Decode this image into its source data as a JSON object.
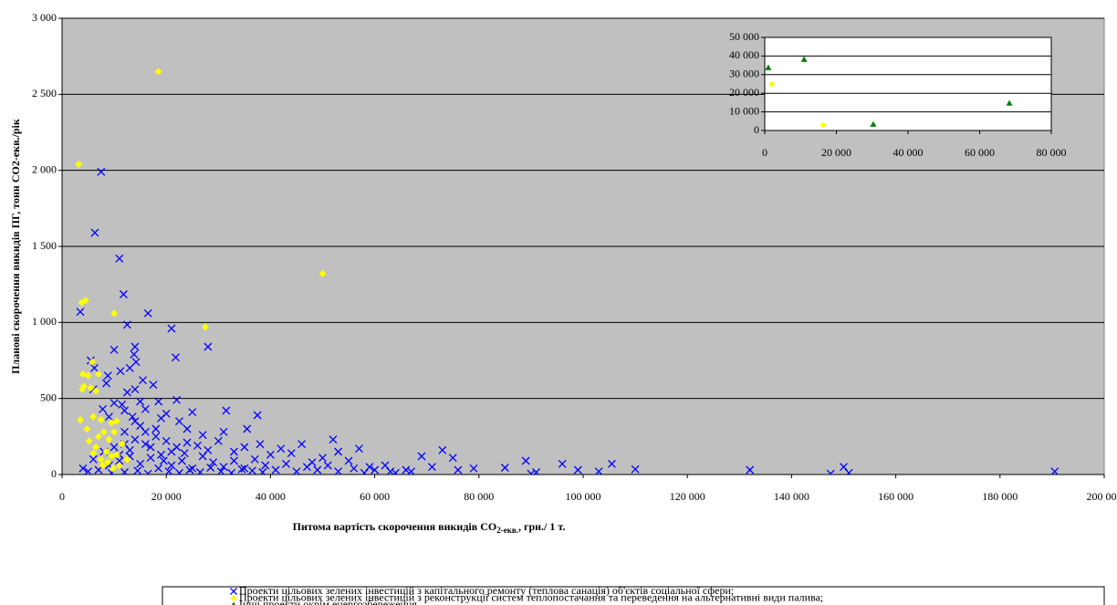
{
  "chart_data": [
    {
      "type": "scatter",
      "y_label": "Планові скорочення викидів ПГ, тонн CO2-екв./рік",
      "x_label": [
        "Питома вартість скорочення викидів CO",
        "2-екв.",
        ", грн./ 1 т."
      ],
      "xlim": [
        0,
        200000
      ],
      "xticks": [
        0,
        {
          "value": 20000,
          "label": "20 000"
        },
        {
          "value": 40000,
          "label": "40 000"
        },
        {
          "value": 60000,
          "label": "60 000"
        },
        {
          "value": 80000,
          "label": "80 000"
        },
        {
          "value": 100000,
          "label": "100 000"
        },
        {
          "value": 120000,
          "label": "120 000"
        },
        {
          "value": 140000,
          "label": "140 000"
        },
        {
          "value": 160000,
          "label": "160 000"
        },
        {
          "value": 180000,
          "label": "180 000"
        },
        {
          "value": 200000,
          "label": "200 000"
        }
      ],
      "ylim": [
        0,
        3000
      ],
      "yticks": [
        0,
        500,
        {
          "value": 1000,
          "label": "1 000"
        },
        {
          "value": 1500,
          "label": "1 500"
        },
        {
          "value": 2000,
          "label": "2 000"
        },
        {
          "value": 2500,
          "label": "2 500"
        },
        {
          "value": 3000,
          "label": "3 000"
        }
      ],
      "grid": true,
      "legend": "bottom",
      "series": [
        {
          "name": "Проекти цільових зелених інвестицій з капітального ремонту (теплова санація) об'єктів соціальної сфери;",
          "color": "#0000ff",
          "marker": "x",
          "x": [
            7500,
            6300,
            11000,
            11800,
            3500,
            16500,
            21000,
            12500,
            21800,
            10000,
            28000,
            14000,
            13800,
            14200,
            11200,
            13000,
            5500,
            6200,
            8800,
            15500,
            17500,
            8500,
            6000,
            14000,
            12500,
            15000,
            18500,
            22000,
            10000,
            11500,
            7800,
            16000,
            20000,
            25000,
            31500,
            37500,
            9000,
            13500,
            19000,
            22500,
            35500,
            31000,
            24000,
            27000,
            15000,
            18000,
            12000,
            52000,
            46000,
            57000,
            53000,
            73000,
            69000,
            75000,
            89000,
            96000,
            105500,
            150000,
            132000,
            190500,
            147500,
            151000,
            90000,
            91000,
            99000,
            103000,
            110000,
            85000,
            79000,
            66000,
            63000,
            62000,
            59000,
            55000,
            50000,
            48000,
            44000,
            42000,
            40000,
            38000,
            35000,
            33000,
            30000,
            28000,
            26000,
            24000,
            22000,
            20000,
            18000,
            16000,
            14000,
            12000,
            10000,
            8000,
            6000,
            4000,
            9000,
            11000,
            13000,
            15000,
            17000,
            19000,
            21000,
            23000,
            25000,
            27000,
            29000,
            31000,
            33000,
            35000,
            37000,
            39000,
            41000,
            43000,
            45000,
            47000,
            49000,
            51000,
            53000,
            56000,
            58000,
            60000,
            64000,
            67000,
            71000,
            76000,
            5000,
            7000,
            9500,
            12000,
            14500,
            16500,
            18500,
            20500,
            22500,
            24500,
            26500,
            28500,
            30500,
            32500,
            34500,
            36500,
            38500,
            13000,
            17000,
            21000,
            19500,
            23500,
            11000,
            16000,
            14000,
            12000
          ],
          "values": [
            1990,
            1590,
            1420,
            1185,
            1070,
            1060,
            960,
            985,
            770,
            820,
            840,
            840,
            790,
            740,
            680,
            700,
            750,
            700,
            650,
            620,
            590,
            600,
            560,
            560,
            540,
            480,
            480,
            490,
            470,
            460,
            430,
            430,
            400,
            410,
            420,
            390,
            380,
            380,
            370,
            350,
            300,
            280,
            300,
            260,
            320,
            300,
            280,
            230,
            200,
            170,
            150,
            160,
            120,
            110,
            90,
            70,
            70,
            50,
            30,
            20,
            5,
            10,
            5,
            15,
            30,
            20,
            35,
            45,
            40,
            30,
            20,
            60,
            50,
            90,
            110,
            80,
            140,
            170,
            130,
            200,
            180,
            150,
            220,
            160,
            190,
            210,
            180,
            220,
            250,
            200,
            230,
            200,
            180,
            150,
            100,
            40,
            60,
            90,
            120,
            70,
            110,
            130,
            60,
            90,
            40,
            120,
            80,
            50,
            90,
            40,
            100,
            60,
            30,
            70,
            20,
            50,
            30,
            60,
            20,
            40,
            10,
            30,
            10,
            20,
            50,
            30,
            20,
            30,
            10,
            15,
            25,
            5,
            40,
            20,
            10,
            30,
            15,
            45,
            20,
            10,
            35,
            25,
            15,
            160,
            180,
            150,
            90,
            140,
            130,
            280,
            350,
            420
          ]
        },
        {
          "name": "Проекти цільових зелених інвестицій з реконструкції систем теплопостачання та переведення на альтернативні види палива;",
          "color": "#ffff00",
          "marker": "diamond",
          "x": [
            18500,
            3200,
            50000,
            4500,
            3800,
            10000,
            27500,
            3500,
            5800,
            4000,
            5000,
            7000,
            4200,
            3900,
            5500,
            6500,
            6000,
            7500,
            4800,
            5200,
            6500,
            7000,
            8000,
            9500,
            10000,
            10500,
            9000,
            8500,
            6000,
            7500,
            8800,
            9500,
            10500,
            11000,
            9800,
            12500,
            7800,
            11500
          ],
          "values": [
            2650,
            2040,
            1320,
            1145,
            1130,
            1060,
            970,
            360,
            740,
            660,
            650,
            660,
            580,
            560,
            570,
            550,
            380,
            360,
            300,
            220,
            180,
            250,
            280,
            340,
            280,
            350,
            230,
            150,
            140,
            100,
            80,
            120,
            130,
            60,
            40,
            100,
            60,
            200
          ]
        },
        {
          "name": "Інші проекти окрім енергозбереження.",
          "color": "#008000",
          "marker": "triangle",
          "x": [
            1000,
            11000,
            30300,
            68300
          ],
          "values": [
            33800,
            38200,
            3400,
            14700
          ]
        }
      ]
    },
    {
      "type": "scatter",
      "xlim": [
        0,
        80000
      ],
      "xticks": [
        0,
        {
          "value": 20000,
          "label": "20 000"
        },
        {
          "value": 40000,
          "label": "40 000"
        },
        {
          "value": 60000,
          "label": "60 000"
        },
        {
          "value": 80000,
          "label": "80 000"
        }
      ],
      "ylim": [
        0,
        50000
      ],
      "yticks": [
        0,
        {
          "value": 10000,
          "label": "10 000"
        },
        {
          "value": 20000,
          "label": "20 000"
        },
        {
          "value": 30000,
          "label": "30 000"
        },
        {
          "value": 40000,
          "label": "40 000"
        },
        {
          "value": 50000,
          "label": "50 000"
        }
      ],
      "grid": true,
      "series": [
        {
          "color": "#ffff00",
          "marker": "diamond",
          "x": [
            2000,
            16300
          ],
          "values": [
            25000,
            2900
          ]
        },
        {
          "color": "#008000",
          "marker": "triangle",
          "x": [
            1000,
            11000,
            30300,
            68300
          ],
          "values": [
            33800,
            38200,
            3400,
            14700
          ]
        }
      ]
    }
  ]
}
